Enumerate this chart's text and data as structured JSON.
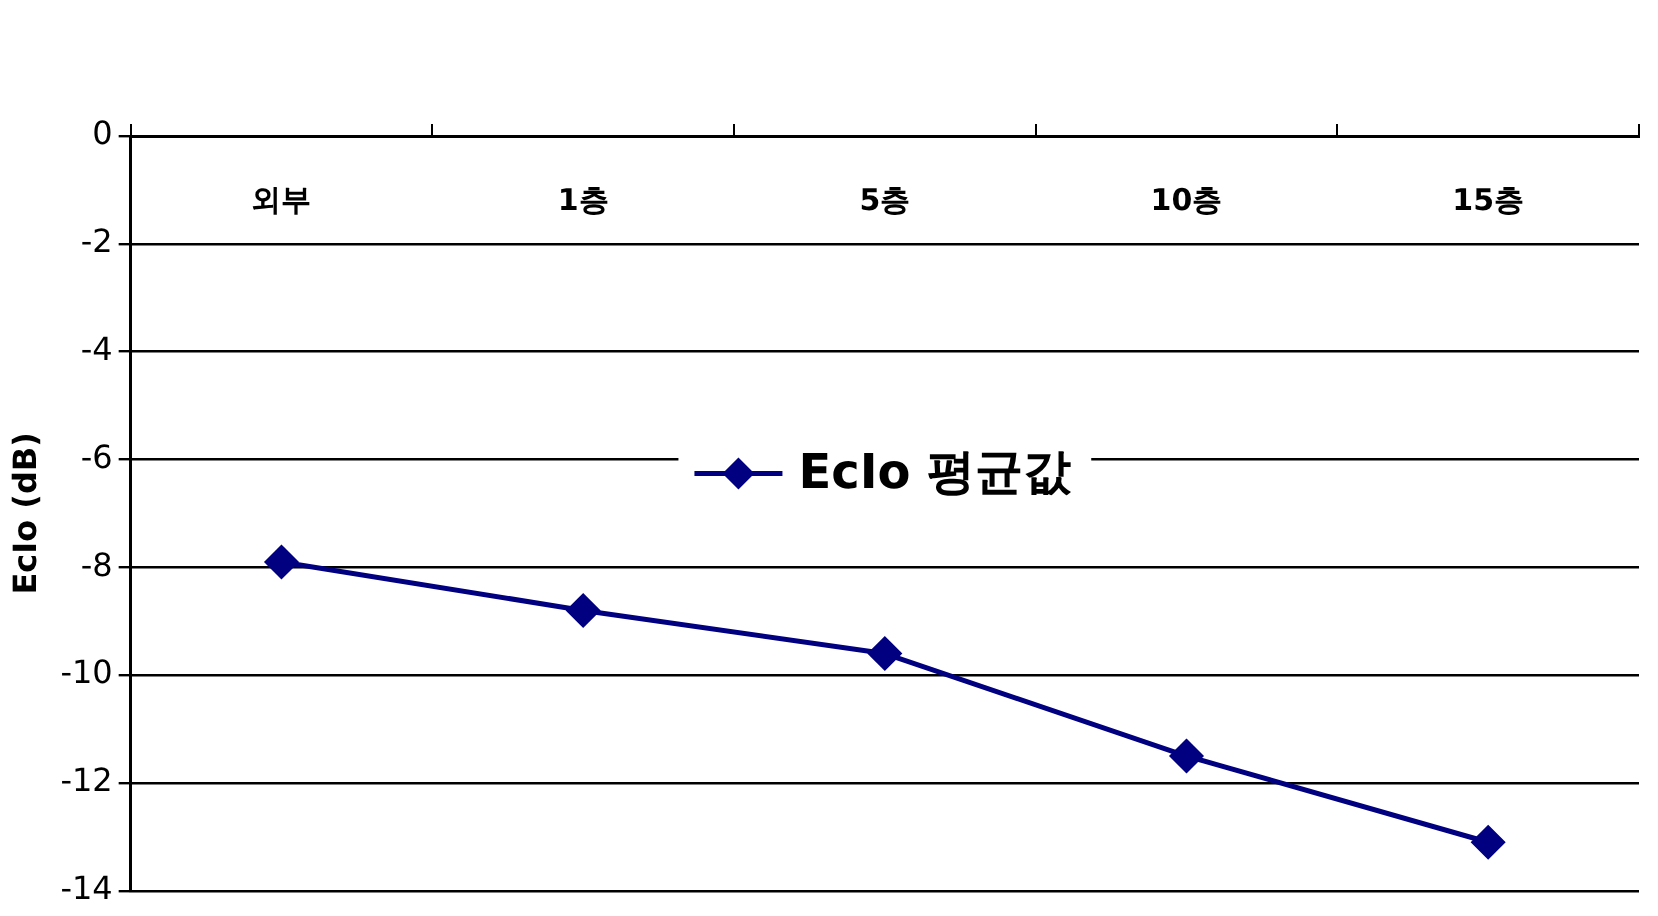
{
  "chart_data": {
    "type": "line",
    "ylabel": "EcIo (dB)",
    "categories": [
      "외부",
      "1층",
      "5층",
      "10층",
      "15층"
    ],
    "series": [
      {
        "name": "EcIo 평균값",
        "color": "#000080",
        "values": [
          -7.9,
          -8.8,
          -9.6,
          -11.5,
          -13.1
        ]
      }
    ],
    "ylim": [
      -14,
      0
    ],
    "yticks": [
      -14,
      -12,
      -10,
      -8,
      -6,
      -4,
      -2,
      0
    ],
    "grid": "y",
    "legend": "center",
    "marker": "diamond",
    "line_style": "solid"
  }
}
